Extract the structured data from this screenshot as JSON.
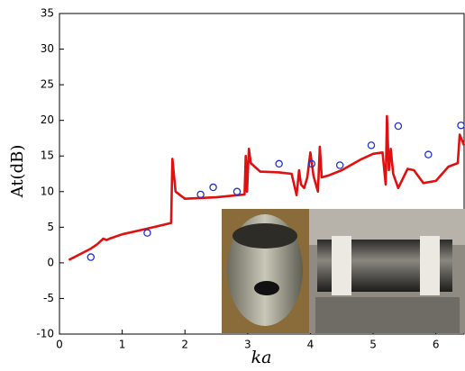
{
  "chart_data": {
    "type": "line",
    "xlabel": "ka",
    "ylabel": "At(dB)",
    "xlim": [
      0,
      6.45
    ],
    "ylim": [
      -10,
      35
    ],
    "xticks": [
      0,
      1,
      2,
      3,
      4,
      5,
      6
    ],
    "yticks": [
      -10,
      -5,
      0,
      5,
      10,
      15,
      20,
      25,
      30,
      35
    ],
    "series": [
      {
        "type": "line",
        "color": "#e01010",
        "x": [
          0.15,
          0.5,
          0.6,
          0.7,
          0.75,
          0.8,
          1.0,
          1.4,
          1.78,
          1.8,
          1.85,
          2.0,
          2.5,
          2.95,
          2.97,
          2.99,
          3.02,
          3.05,
          3.2,
          3.5,
          3.7,
          3.78,
          3.82,
          3.85,
          3.9,
          3.95,
          4.0,
          4.05,
          4.12,
          4.15,
          4.18,
          4.3,
          4.5,
          4.8,
          5.0,
          5.15,
          5.2,
          5.22,
          5.25,
          5.28,
          5.32,
          5.4,
          5.55,
          5.65,
          5.8,
          6.0,
          6.2,
          6.35,
          6.38,
          6.45
        ],
        "values": [
          0.4,
          2,
          2.6,
          3.4,
          3.2,
          3.4,
          4,
          4.8,
          5.6,
          14.6,
          10,
          9,
          9.2,
          9.6,
          15,
          10,
          16,
          14,
          12.8,
          12.7,
          12.5,
          9.5,
          13,
          11,
          10.5,
          12,
          15.5,
          12.2,
          10,
          16.3,
          12,
          12.3,
          13,
          14.5,
          15.3,
          15.5,
          11,
          20.6,
          13,
          16,
          12.5,
          10.5,
          13.2,
          13,
          11.2,
          11.5,
          13.5,
          14,
          18,
          16.5
        ]
      },
      {
        "type": "scatter",
        "color": "#2233cc",
        "x": [
          0.5,
          1.4,
          2.25,
          2.45,
          2.83,
          3.5,
          4.02,
          4.47,
          4.97,
          5.4,
          5.88,
          6.4
        ],
        "values": [
          0.8,
          4.2,
          9.6,
          10.6,
          10,
          13.9,
          13.9,
          13.7,
          16.5,
          19.2,
          15.2,
          19.3
        ]
      }
    ]
  }
}
